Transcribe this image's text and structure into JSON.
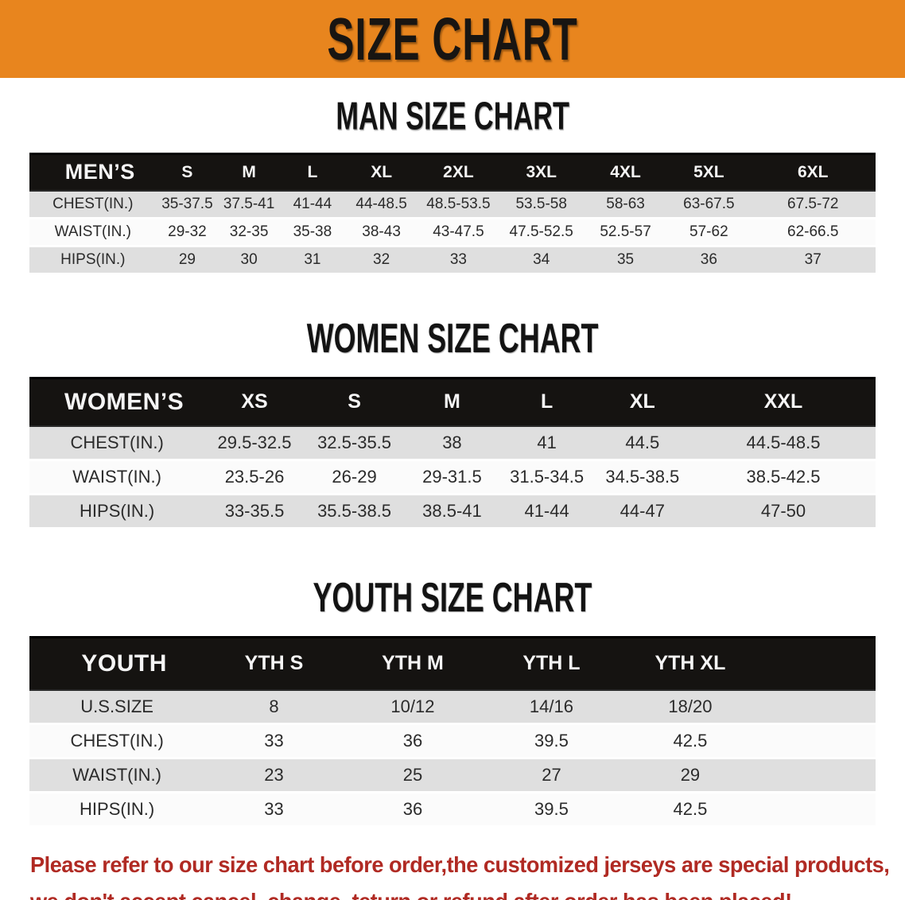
{
  "banner": {
    "title": "SIZE CHART",
    "bg_color": "#E8851E",
    "text_color": "#181512"
  },
  "sections": [
    {
      "heading": "MAN SIZE CHART",
      "table": {
        "header_label": "MEN’S",
        "columns": [
          "S",
          "M",
          "L",
          "XL",
          "2XL",
          "3XL",
          "4XL",
          "5XL",
          "6XL"
        ],
        "rows": [
          {
            "label": "CHEST(IN.)",
            "values": [
              "35-37.5",
              "37.5-41",
              "41-44",
              "44-48.5",
              "48.5-53.5",
              "53.5-58",
              "58-63",
              "63-67.5",
              "67.5-72"
            ]
          },
          {
            "label": "WAIST(IN.)",
            "values": [
              "29-32",
              "32-35",
              "35-38",
              "38-43",
              "43-47.5",
              "47.5-52.5",
              "52.5-57",
              "57-62",
              "62-66.5"
            ]
          },
          {
            "label": "HIPS(IN.)",
            "values": [
              "29",
              "30",
              "31",
              "32",
              "33",
              "34",
              "35",
              "36",
              "37"
            ]
          }
        ]
      }
    },
    {
      "heading": "WOMEN SIZE CHART",
      "table": {
        "header_label": "WOMEN’S",
        "columns": [
          "XS",
          "S",
          "M",
          "L",
          "XL",
          "XXL"
        ],
        "rows": [
          {
            "label": "CHEST(IN.)",
            "values": [
              "29.5-32.5",
              "32.5-35.5",
              "38",
              "41",
              "44.5",
              "44.5-48.5"
            ]
          },
          {
            "label": "WAIST(IN.)",
            "values": [
              "23.5-26",
              "26-29",
              "29-31.5",
              "31.5-34.5",
              "34.5-38.5",
              "38.5-42.5"
            ]
          },
          {
            "label": "HIPS(IN.)",
            "values": [
              "33-35.5",
              "35.5-38.5",
              "38.5-41",
              "41-44",
              "44-47",
              "47-50"
            ]
          }
        ]
      }
    },
    {
      "heading": "YOUTH SIZE CHART",
      "table": {
        "header_label": "YOUTH",
        "columns": [
          "YTH S",
          "YTH M",
          "YTH L",
          "YTH XL"
        ],
        "rows": [
          {
            "label": "U.S.SIZE",
            "values": [
              "8",
              "10/12",
              "14/16",
              "18/20"
            ]
          },
          {
            "label": "CHEST(IN.)",
            "values": [
              "33",
              "36",
              "39.5",
              "42.5"
            ]
          },
          {
            "label": "WAIST(IN.)",
            "values": [
              "23",
              "25",
              "27",
              "29"
            ]
          },
          {
            "label": "HIPS(IN.)",
            "values": [
              "33",
              "36",
              "39.5",
              "42.5"
            ]
          }
        ]
      }
    }
  ],
  "disclaimer": {
    "line1": "Please refer to our size chart before order,the customized jerseys are special products,",
    "line2": "we don't accept cancel, change, teturn or refund after order has been placed!",
    "color": "#B02A23"
  }
}
